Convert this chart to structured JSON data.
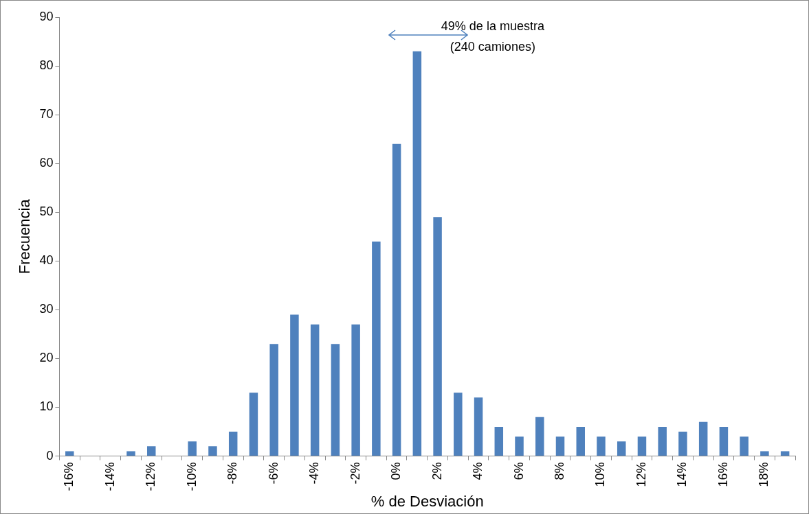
{
  "chart_data": {
    "type": "bar",
    "xlabel": "% de Desviación",
    "ylabel": "Frecuencia",
    "categories": [
      "-16%",
      null,
      "-14%",
      null,
      "-12%",
      null,
      "-10%",
      null,
      "-8%",
      null,
      "-6%",
      null,
      "-4%",
      null,
      "-2%",
      null,
      "0%",
      null,
      "2%",
      null,
      "4%",
      null,
      "6%",
      null,
      "8%",
      null,
      "10%",
      null,
      "12%",
      null,
      "14%",
      null,
      "16%",
      null,
      "18%",
      null
    ],
    "values": [
      1,
      0,
      0,
      1,
      2,
      0,
      3,
      2,
      5,
      13,
      23,
      29,
      27,
      23,
      27,
      44,
      64,
      83,
      49,
      13,
      12,
      6,
      4,
      8,
      4,
      6,
      4,
      3,
      4,
      6,
      5,
      7,
      6,
      4,
      1,
      1
    ],
    "color": "#4f81bd",
    "ylim": [
      0,
      90
    ],
    "yticks": [
      0,
      10,
      20,
      30,
      40,
      50,
      60,
      70,
      80,
      90
    ],
    "grid": false,
    "legend": false,
    "annotations": [
      "49% de la muestra\n(240 camiones)"
    ]
  }
}
